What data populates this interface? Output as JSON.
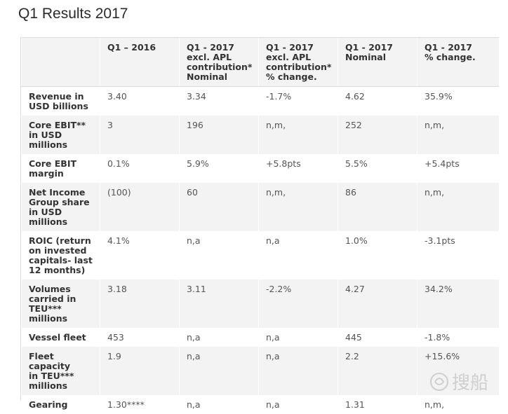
{
  "page": {
    "title": "Q1 Results 2017"
  },
  "table": {
    "headers": [
      "",
      "Q1 – 2016",
      "Q1 - 2017\nexcl. APL\ncontribution*\nNominal",
      "Q1 - 2017\nexcl. APL\ncontribution*\n% change.",
      "Q1 - 2017\nNominal",
      "Q1 - 2017\n% change."
    ],
    "rows": [
      {
        "label": "Revenue in\nUSD billions",
        "cells": [
          "3.40",
          "3.34",
          "-1.7%",
          "4.62",
          "35.9%"
        ]
      },
      {
        "label": "Core EBIT**\nin USD\nmillions",
        "cells": [
          "3",
          "196",
          "n,m,",
          "252",
          "n,m,"
        ]
      },
      {
        "label": "Core EBIT\nmargin",
        "cells": [
          "0.1%",
          "5.9%",
          "+5.8pts",
          "5.5%",
          "+5.4pts"
        ]
      },
      {
        "label": "Net Income\nGroup share\nin USD\nmillions",
        "cells": [
          "(100)",
          "60",
          "n,m,",
          "86",
          "n,m,"
        ]
      },
      {
        "label": "ROIC (return\non invested\ncapitals- last\n12 months)",
        "cells": [
          "4.1%",
          "n,a",
          "n,a",
          "1.0%",
          "-3.1pts"
        ]
      },
      {
        "label": "Volumes\ncarried in\nTEU***\nmillions",
        "cells": [
          "3.18",
          "3.11",
          "-2.2%",
          "4.27",
          "34.2%"
        ]
      },
      {
        "label": "Vessel fleet",
        "cells": [
          "453",
          "n,a",
          "n,a",
          "445",
          "-1.8%"
        ]
      },
      {
        "label": "Fleet capacity\nin TEU***\nmillions",
        "cells": [
          "1.9",
          "n,a",
          "n,a",
          "2.2",
          "+15.6%"
        ]
      },
      {
        "label": "Gearing",
        "cells": [
          "1.30****",
          "n,a",
          "n,a",
          "1.31",
          "n,m,"
        ]
      }
    ]
  },
  "watermark": {
    "text": "搜船",
    "color": "#c9c9c9"
  }
}
